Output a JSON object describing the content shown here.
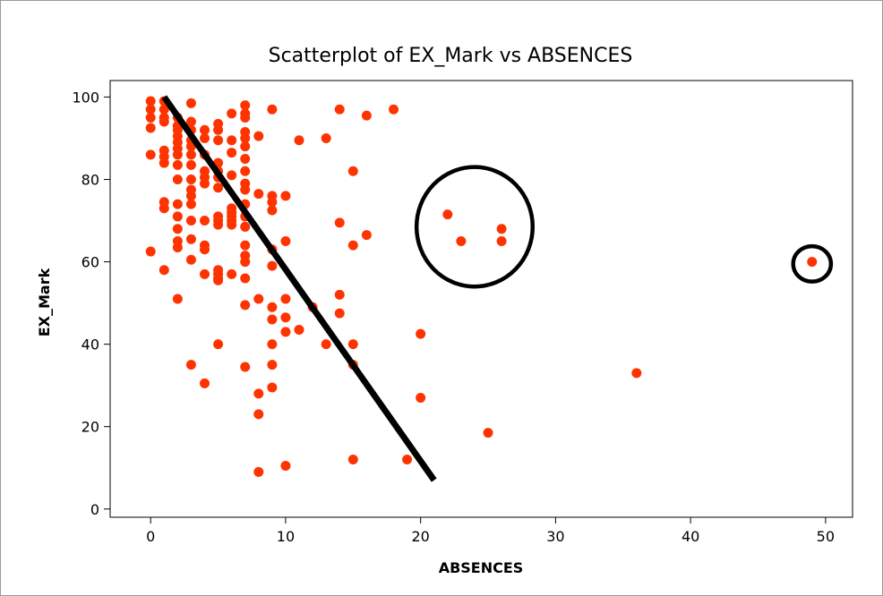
{
  "chart_data": {
    "type": "scatter",
    "title": "Scatterplot of EX_Mark vs ABSENCES",
    "xlabel": "ABSENCES",
    "ylabel": "EX_Mark",
    "xlim": [
      -3,
      52
    ],
    "ylim": [
      -2,
      104
    ],
    "xticks": [
      0,
      10,
      20,
      30,
      40,
      50
    ],
    "yticks": [
      0,
      20,
      40,
      60,
      80,
      100
    ],
    "grid": false,
    "legend": "none",
    "point_color": "#ff3300",
    "points": [
      [
        0,
        99
      ],
      [
        0,
        97
      ],
      [
        0,
        95
      ],
      [
        0,
        92.5
      ],
      [
        0,
        86
      ],
      [
        0,
        62.5
      ],
      [
        1,
        99
      ],
      [
        1,
        97
      ],
      [
        1,
        95
      ],
      [
        1,
        94
      ],
      [
        1,
        87
      ],
      [
        1,
        85.5
      ],
      [
        1,
        84
      ],
      [
        1,
        74.5
      ],
      [
        1,
        73
      ],
      [
        1,
        58
      ],
      [
        2,
        95
      ],
      [
        2,
        93
      ],
      [
        2,
        92
      ],
      [
        2,
        90.5
      ],
      [
        2,
        89
      ],
      [
        2,
        87.5
      ],
      [
        2,
        86
      ],
      [
        2,
        83.5
      ],
      [
        2,
        80
      ],
      [
        2,
        74
      ],
      [
        2,
        71
      ],
      [
        2,
        68
      ],
      [
        2,
        65
      ],
      [
        2,
        63.5
      ],
      [
        2,
        51
      ],
      [
        3,
        98.5
      ],
      [
        3,
        94
      ],
      [
        3,
        92
      ],
      [
        3,
        89.5
      ],
      [
        3,
        88
      ],
      [
        3,
        86
      ],
      [
        3,
        83.5
      ],
      [
        3,
        80
      ],
      [
        3,
        77.5
      ],
      [
        3,
        76
      ],
      [
        3,
        74
      ],
      [
        3,
        70
      ],
      [
        3,
        65.5
      ],
      [
        3,
        60.5
      ],
      [
        3,
        35
      ],
      [
        4,
        92
      ],
      [
        4,
        90
      ],
      [
        4,
        86
      ],
      [
        4,
        82
      ],
      [
        4,
        80.5
      ],
      [
        4,
        79
      ],
      [
        4,
        70
      ],
      [
        4,
        64
      ],
      [
        4,
        63
      ],
      [
        4,
        57
      ],
      [
        4,
        30.5
      ],
      [
        5,
        93.5
      ],
      [
        5,
        92
      ],
      [
        5,
        89.5
      ],
      [
        5,
        84
      ],
      [
        5,
        82
      ],
      [
        5,
        80.5
      ],
      [
        5,
        78
      ],
      [
        5,
        71
      ],
      [
        5,
        70
      ],
      [
        5,
        69
      ],
      [
        5,
        58
      ],
      [
        5,
        57
      ],
      [
        5,
        56
      ],
      [
        5,
        55.5
      ],
      [
        5,
        40
      ],
      [
        6,
        96
      ],
      [
        6,
        89.5
      ],
      [
        6,
        86.5
      ],
      [
        6,
        81
      ],
      [
        6,
        73
      ],
      [
        6,
        72
      ],
      [
        6,
        71
      ],
      [
        6,
        70
      ],
      [
        6,
        69
      ],
      [
        6,
        57
      ],
      [
        7,
        98
      ],
      [
        7,
        96
      ],
      [
        7,
        95
      ],
      [
        7,
        91.5
      ],
      [
        7,
        90
      ],
      [
        7,
        88
      ],
      [
        7,
        85
      ],
      [
        7,
        82
      ],
      [
        7,
        79
      ],
      [
        7,
        77.5
      ],
      [
        7,
        74
      ],
      [
        7,
        71
      ],
      [
        7,
        68.5
      ],
      [
        7,
        64
      ],
      [
        7,
        61.5
      ],
      [
        7,
        60
      ],
      [
        7,
        56
      ],
      [
        7,
        49.5
      ],
      [
        7,
        34.5
      ],
      [
        8,
        90.5
      ],
      [
        8,
        76.5
      ],
      [
        8,
        51
      ],
      [
        8,
        28
      ],
      [
        8,
        23
      ],
      [
        8,
        9
      ],
      [
        9,
        97
      ],
      [
        9,
        76
      ],
      [
        9,
        74.5
      ],
      [
        9,
        72.5
      ],
      [
        9,
        63
      ],
      [
        9,
        59
      ],
      [
        9,
        49
      ],
      [
        9,
        46
      ],
      [
        9,
        40
      ],
      [
        9,
        35
      ],
      [
        9,
        29.5
      ],
      [
        10,
        76
      ],
      [
        10,
        65
      ],
      [
        10,
        51
      ],
      [
        10,
        46.5
      ],
      [
        10,
        43
      ],
      [
        10,
        10.5
      ],
      [
        11,
        89.5
      ],
      [
        11,
        43.5
      ],
      [
        12,
        49
      ],
      [
        13,
        90
      ],
      [
        13,
        40
      ],
      [
        14,
        97
      ],
      [
        14,
        69.5
      ],
      [
        14,
        52
      ],
      [
        14,
        47.5
      ],
      [
        15,
        82
      ],
      [
        15,
        64
      ],
      [
        15,
        40
      ],
      [
        15,
        35
      ],
      [
        15,
        12
      ],
      [
        16,
        95.5
      ],
      [
        16,
        66.5
      ],
      [
        18,
        97
      ],
      [
        19,
        12
      ],
      [
        20,
        42.5
      ],
      [
        20,
        27
      ],
      [
        22,
        71.5
      ],
      [
        23,
        65
      ],
      [
        25,
        18.5
      ],
      [
        26,
        68
      ],
      [
        26,
        65
      ],
      [
        36,
        33
      ],
      [
        49,
        60
      ]
    ],
    "annotations": [
      {
        "type": "line",
        "from": [
          1,
          100
        ],
        "to": [
          21,
          7
        ]
      },
      {
        "type": "ellipse",
        "center": [
          24,
          68.5
        ],
        "rx_units": 4.3,
        "ry_units": 14.5
      },
      {
        "type": "ellipse",
        "center": [
          49,
          59.5
        ],
        "rx_units": 1.4,
        "ry_units": 4.3
      }
    ]
  }
}
